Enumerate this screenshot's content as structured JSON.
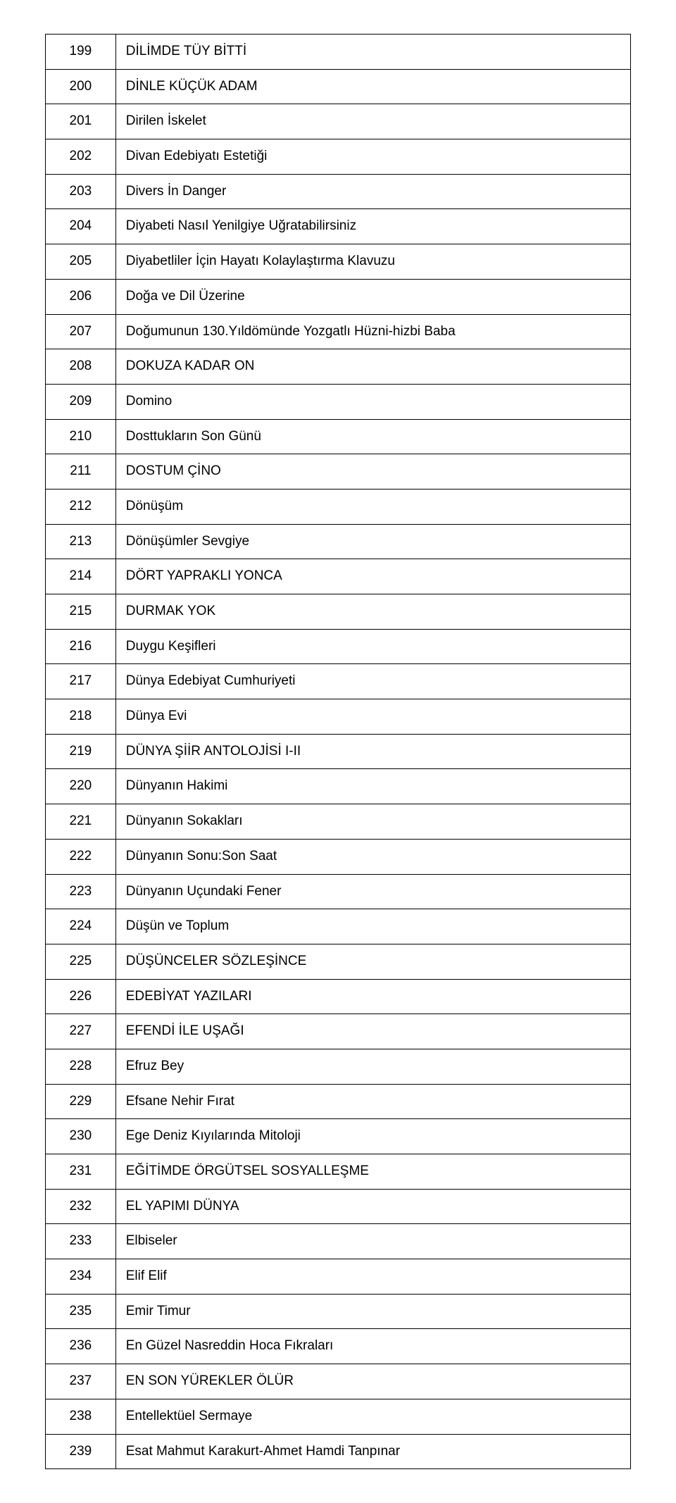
{
  "table": {
    "border_color": "#000000",
    "text_color": "#000000",
    "background_color": "#ffffff",
    "font_size": 19,
    "rows": [
      {
        "num": "199",
        "text": "DİLİMDE TÜY BİTTİ"
      },
      {
        "num": "200",
        "text": "DİNLE KÜÇÜK ADAM"
      },
      {
        "num": "201",
        "text": "Dirilen İskelet"
      },
      {
        "num": "202",
        "text": "Divan Edebiyatı Estetiği"
      },
      {
        "num": "203",
        "text": "Divers İn Danger"
      },
      {
        "num": "204",
        "text": "Diyabeti Nasıl Yenilgiye Uğratabilirsiniz"
      },
      {
        "num": "205",
        "text": "Diyabetliler İçin Hayatı Kolaylaştırma Klavuzu"
      },
      {
        "num": "206",
        "text": "Doğa ve Dil Üzerine"
      },
      {
        "num": "207",
        "text": "Doğumunun 130.Yıldömünde Yozgatlı Hüzni-hizbi Baba"
      },
      {
        "num": "208",
        "text": "DOKUZA KADAR ON"
      },
      {
        "num": "209",
        "text": "Domino"
      },
      {
        "num": "210",
        "text": "Dosttukların Son Günü"
      },
      {
        "num": "211",
        "text": "DOSTUM ÇİNO"
      },
      {
        "num": "212",
        "text": "Dönüşüm"
      },
      {
        "num": "213",
        "text": "Dönüşümler Sevgiye"
      },
      {
        "num": "214",
        "text": "DÖRT YAPRAKLI YONCA"
      },
      {
        "num": "215",
        "text": "DURMAK YOK"
      },
      {
        "num": "216",
        "text": "Duygu Keşifleri"
      },
      {
        "num": "217",
        "text": "Dünya Edebiyat Cumhuriyeti"
      },
      {
        "num": "218",
        "text": "Dünya Evi"
      },
      {
        "num": "219",
        "text": "DÜNYA ŞİİR ANTOLOJİSİ I-II"
      },
      {
        "num": "220",
        "text": "Dünyanın Hakimi"
      },
      {
        "num": "221",
        "text": "Dünyanın Sokakları"
      },
      {
        "num": "222",
        "text": "Dünyanın Sonu:Son Saat"
      },
      {
        "num": "223",
        "text": "Dünyanın Uçundaki Fener"
      },
      {
        "num": "224",
        "text": "Düşün ve Toplum"
      },
      {
        "num": "225",
        "text": "DÜŞÜNCELER SÖZLEŞİNCE"
      },
      {
        "num": "226",
        "text": "EDEBİYAT YAZILARI"
      },
      {
        "num": "227",
        "text": "EFENDİ İLE UŞAĞI"
      },
      {
        "num": "228",
        "text": "Efruz Bey"
      },
      {
        "num": "229",
        "text": "Efsane Nehir Fırat"
      },
      {
        "num": "230",
        "text": "Ege Deniz Kıyılarında Mitoloji"
      },
      {
        "num": "231",
        "text": "EĞİTİMDE ÖRGÜTSEL SOSYALLEŞME"
      },
      {
        "num": "232",
        "text": "EL YAPIMI DÜNYA"
      },
      {
        "num": "233",
        "text": "Elbiseler"
      },
      {
        "num": "234",
        "text": "Elif Elif"
      },
      {
        "num": "235",
        "text": "Emir Timur"
      },
      {
        "num": "236",
        "text": "En Güzel Nasreddin Hoca Fıkraları"
      },
      {
        "num": "237",
        "text": "EN SON YÜREKLER ÖLÜR"
      },
      {
        "num": "238",
        "text": "Entellektüel Sermaye"
      },
      {
        "num": "239",
        "text": "Esat Mahmut Karakurt-Ahmet Hamdi Tanpınar"
      }
    ]
  }
}
